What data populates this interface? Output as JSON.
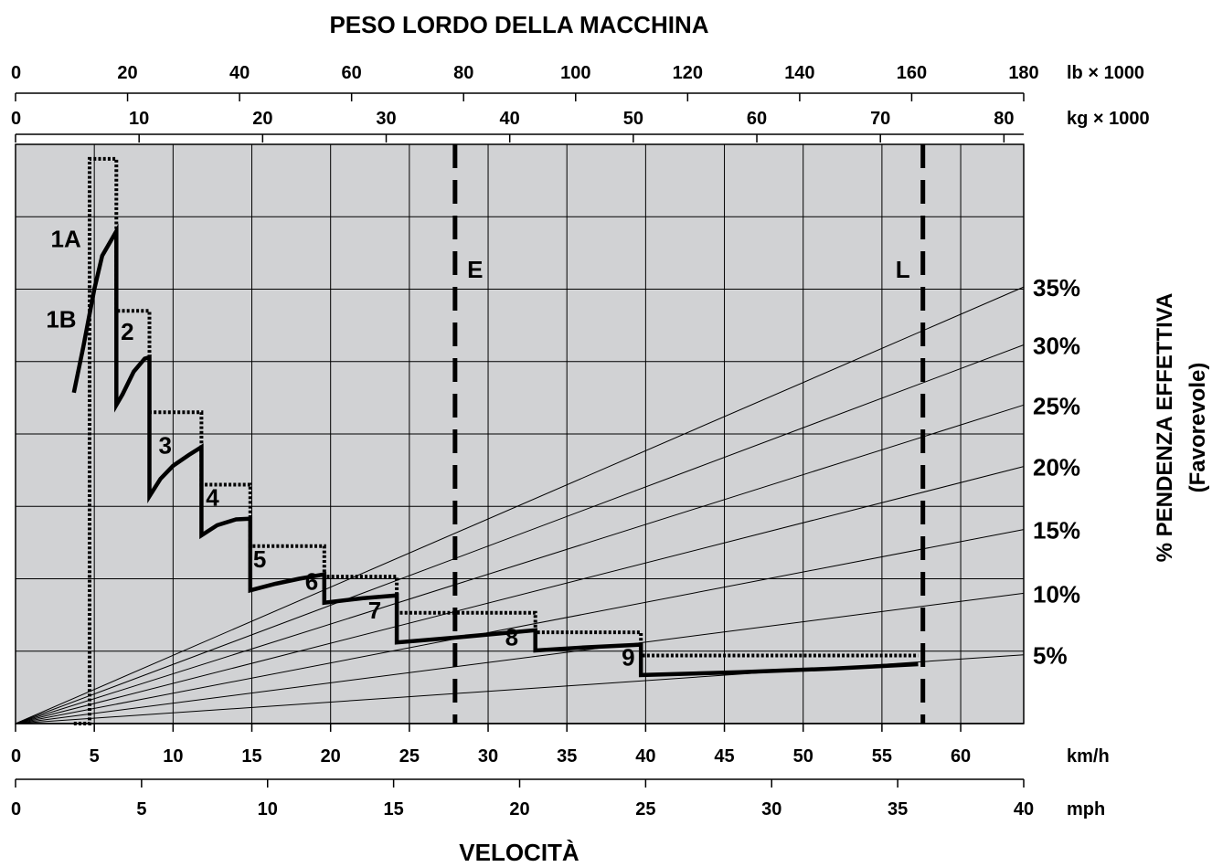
{
  "chart_data": {
    "type": "line",
    "title": "PESO LORDO DELLA MACCHINA",
    "xlabel": "VELOCITÀ",
    "ylabel": "% PENDENZA EFFETTIVA",
    "ylabel_sub": "(Favorevole)",
    "axes": {
      "top_lb": {
        "unit": "lb × 1000",
        "ticks": [
          "0",
          "20",
          "40",
          "60",
          "80",
          "100",
          "120",
          "140",
          "160",
          "180"
        ],
        "range": [
          0,
          180
        ]
      },
      "top_kg": {
        "unit": "kg × 1000",
        "ticks": [
          "0",
          "10",
          "20",
          "30",
          "40",
          "50",
          "60",
          "70",
          "80"
        ],
        "range": [
          0,
          81.6
        ]
      },
      "bottom_kmh": {
        "unit": "km/h",
        "ticks": [
          "0",
          "5",
          "10",
          "15",
          "20",
          "25",
          "30",
          "35",
          "40",
          "45",
          "50",
          "55",
          "60"
        ],
        "range": [
          0,
          64
        ]
      },
      "bottom_mph": {
        "unit": "mph",
        "ticks": [
          "0",
          "5",
          "10",
          "15",
          "20",
          "25",
          "30",
          "35",
          "40"
        ],
        "range": [
          0,
          40
        ]
      },
      "y_range": [
        0,
        80
      ]
    },
    "grade_lines": [
      {
        "label": "5%",
        "end_y": 9.5
      },
      {
        "label": "10%",
        "end_y": 18.0
      },
      {
        "label": "15%",
        "end_y": 26.8
      },
      {
        "label": "20%",
        "end_y": 35.5
      },
      {
        "label": "25%",
        "end_y": 44.0
      },
      {
        "label": "30%",
        "end_y": 52.3
      },
      {
        "label": "35%",
        "end_y": 60.3
      }
    ],
    "gear_labels": [
      {
        "text": "1A",
        "x": 3.2,
        "y": 65.8
      },
      {
        "text": "1B",
        "x": 2.9,
        "y": 54.7
      },
      {
        "text": "2",
        "x": 7.1,
        "y": 53.0
      },
      {
        "text": "3",
        "x": 9.5,
        "y": 37.3
      },
      {
        "text": "4",
        "x": 12.5,
        "y": 30.1
      },
      {
        "text": "5",
        "x": 15.5,
        "y": 21.6
      },
      {
        "text": "6",
        "x": 18.8,
        "y": 18.5
      },
      {
        "text": "7",
        "x": 22.8,
        "y": 14.5
      },
      {
        "text": "8",
        "x": 31.5,
        "y": 10.8
      },
      {
        "text": "9",
        "x": 38.9,
        "y": 8.0
      }
    ],
    "vertical_markers": [
      {
        "label": "E",
        "x": 27.9
      },
      {
        "label": "L",
        "x": 57.6
      }
    ],
    "series": [
      {
        "style": "solid",
        "points": [
          [
            3.7,
            45.7
          ],
          [
            4.3,
            52.0
          ],
          [
            5.0,
            60.0
          ],
          [
            5.5,
            64.6
          ],
          [
            6.4,
            68.0
          ],
          [
            6.4,
            44.0
          ],
          [
            6.8,
            45.5
          ],
          [
            7.5,
            48.6
          ],
          [
            8.2,
            50.4
          ],
          [
            8.5,
            50.6
          ],
          [
            8.5,
            31.4
          ],
          [
            9.2,
            33.8
          ],
          [
            10.0,
            35.6
          ],
          [
            11.0,
            37.1
          ],
          [
            11.8,
            38.2
          ],
          [
            11.8,
            26.0
          ],
          [
            12.8,
            27.4
          ],
          [
            14.0,
            28.2
          ],
          [
            14.9,
            28.3
          ],
          [
            14.9,
            18.4
          ],
          [
            16.5,
            19.3
          ],
          [
            18.0,
            20.0
          ],
          [
            19.6,
            20.6
          ],
          [
            19.6,
            16.7
          ],
          [
            22.0,
            17.3
          ],
          [
            24.2,
            17.7
          ],
          [
            24.2,
            11.2
          ],
          [
            28.0,
            11.9
          ],
          [
            33.0,
            12.9
          ],
          [
            33.0,
            10.1
          ],
          [
            36.0,
            10.5
          ],
          [
            39.7,
            10.9
          ],
          [
            39.7,
            6.7
          ],
          [
            46.0,
            7.1
          ],
          [
            52.0,
            7.6
          ],
          [
            57.3,
            8.2
          ]
        ]
      },
      {
        "style": "dotted",
        "points": [
          [
            3.7,
            0.0
          ],
          [
            4.7,
            0.0
          ],
          [
            4.7,
            78.0
          ],
          [
            6.4,
            78.0
          ],
          [
            6.4,
            57.0
          ],
          [
            8.5,
            57.0
          ],
          [
            8.5,
            43.0
          ],
          [
            11.8,
            43.0
          ],
          [
            11.8,
            33.0
          ],
          [
            14.9,
            33.0
          ],
          [
            14.9,
            24.5
          ],
          [
            19.6,
            24.5
          ],
          [
            19.6,
            20.3
          ],
          [
            24.2,
            20.3
          ],
          [
            24.2,
            15.3
          ],
          [
            33.0,
            15.3
          ],
          [
            33.0,
            12.6
          ],
          [
            39.7,
            12.6
          ],
          [
            39.7,
            9.4
          ],
          [
            57.3,
            9.4
          ]
        ]
      }
    ]
  }
}
